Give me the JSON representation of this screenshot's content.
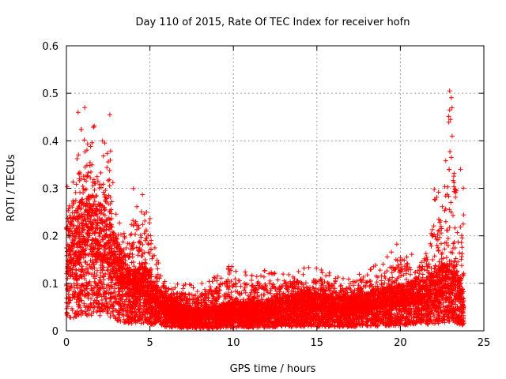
{
  "chart_data": {
    "type": "scatter",
    "title": "Day 110 of 2015, Rate Of TEC Index for receiver hofn",
    "xlabel": "GPS time / hours",
    "ylabel": "ROTI / TECUs",
    "xlim": [
      0,
      25
    ],
    "ylim": [
      0,
      0.6
    ],
    "x_ticks": [
      "0",
      "5",
      "10",
      "15",
      "20",
      "25"
    ],
    "y_ticks": [
      "0",
      "0.1",
      "0.2",
      "0.3",
      "0.4",
      "0.5",
      "0.6"
    ],
    "grid": true,
    "marker": "+",
    "colors": {
      "series": "#ff0000",
      "grid": "#a0a0a0",
      "axis": "#000000"
    },
    "series": [
      {
        "name": "ROTI",
        "envelope_hours": [
          0,
          0.5,
          1,
          1.5,
          2,
          2.5,
          3,
          3.5,
          4,
          4.5,
          5,
          5.5,
          6,
          7,
          8,
          9,
          10,
          11,
          12,
          13,
          14,
          15,
          16,
          17,
          18,
          19,
          20,
          21,
          21.5,
          22,
          22.5,
          23,
          23.5,
          23.8
        ],
        "envelope_mean": [
          0.12,
          0.14,
          0.16,
          0.16,
          0.15,
          0.14,
          0.11,
          0.08,
          0.07,
          0.08,
          0.07,
          0.05,
          0.04,
          0.03,
          0.025,
          0.03,
          0.035,
          0.035,
          0.035,
          0.04,
          0.045,
          0.045,
          0.04,
          0.04,
          0.045,
          0.05,
          0.055,
          0.06,
          0.06,
          0.07,
          0.08,
          0.08,
          0.07,
          0.05
        ],
        "envelope_max": [
          0.3,
          0.35,
          0.47,
          0.44,
          0.42,
          0.45,
          0.26,
          0.2,
          0.3,
          0.29,
          0.26,
          0.15,
          0.1,
          0.1,
          0.1,
          0.12,
          0.15,
          0.12,
          0.13,
          0.12,
          0.14,
          0.14,
          0.12,
          0.11,
          0.13,
          0.15,
          0.2,
          0.16,
          0.2,
          0.3,
          0.3,
          0.51,
          0.34,
          0.31
        ],
        "notable_points": [
          {
            "x": 1.1,
            "y": 0.47
          },
          {
            "x": 2.6,
            "y": 0.455
          },
          {
            "x": 0.7,
            "y": 0.46
          },
          {
            "x": 22.95,
            "y": 0.505
          },
          {
            "x": 22.95,
            "y": 0.465
          },
          {
            "x": 23.0,
            "y": 0.445
          },
          {
            "x": 23.1,
            "y": 0.41
          },
          {
            "x": 23.05,
            "y": 0.365
          },
          {
            "x": 23.6,
            "y": 0.34
          }
        ]
      }
    ]
  }
}
